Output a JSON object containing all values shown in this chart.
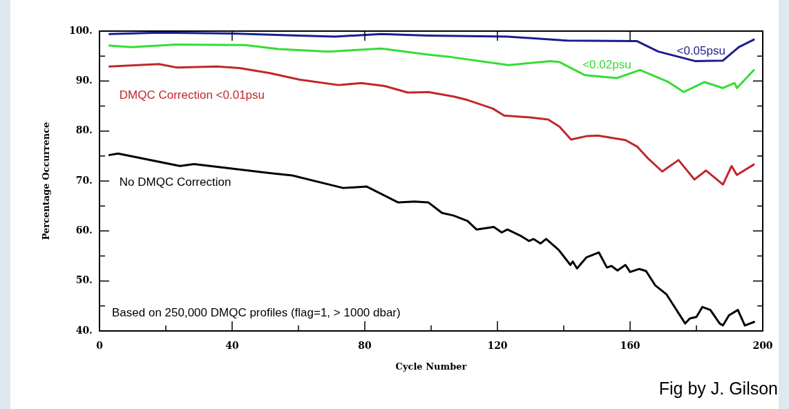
{
  "chart_data": {
    "type": "line",
    "xlabel": "Cycle Number",
    "ylabel": "Percentage Occurrence",
    "xlim": [
      0,
      200
    ],
    "ylim": [
      40,
      100
    ],
    "xticks": [
      0,
      {
        "value": 20,
        "label": null
      },
      40,
      {
        "value": 60,
        "label": null
      },
      80,
      {
        "value": 100,
        "label": null
      },
      120,
      {
        "value": 140,
        "label": null
      },
      160,
      {
        "value": 180,
        "label": null
      },
      200
    ],
    "yticks": [
      {
        "value": 40,
        "label": "40."
      },
      {
        "value": 45,
        "label": null
      },
      {
        "value": 50,
        "label": "50."
      },
      {
        "value": 55,
        "label": null
      },
      {
        "value": 60,
        "label": "60."
      },
      {
        "value": 65,
        "label": null
      },
      {
        "value": 70,
        "label": "70."
      },
      {
        "value": 75,
        "label": null
      },
      {
        "value": 80,
        "label": "80."
      },
      {
        "value": 85,
        "label": null
      },
      {
        "value": 90,
        "label": "90."
      },
      {
        "value": 95,
        "label": null
      },
      {
        "value": 100,
        "label": "100."
      }
    ],
    "grid": false,
    "legend": false,
    "marker": "none",
    "line_style": "solid",
    "series": [
      {
        "name": "<0.05psu",
        "color": "#1c1c8e",
        "x": [
          3,
          18,
          40,
          60,
          71,
          85,
          99,
          123,
          141,
          162,
          168.5,
          179.6,
          188,
          192.8,
          197.3
        ],
        "values": [
          99.4,
          99.7,
          99.5,
          99.1,
          98.9,
          99.4,
          99.1,
          98.9,
          98.1,
          98,
          95.9,
          94,
          94.1,
          96.8,
          98.3
        ]
      },
      {
        "name": "<0.02psu",
        "color": "#33dd33",
        "x": [
          3,
          9.6,
          23,
          44,
          54,
          69,
          85,
          99,
          106,
          123.4,
          135.9,
          138.7,
          146.3,
          156,
          163,
          171.3,
          176.2,
          182.4,
          188,
          191.5,
          192.2,
          197.3
        ],
        "values": [
          97.1,
          96.8,
          97.3,
          97.2,
          96.4,
          95.9,
          96.5,
          95.3,
          94.8,
          93.2,
          94,
          93.8,
          91.2,
          90.6,
          92.2,
          89.9,
          87.8,
          89.8,
          88.6,
          89.6,
          88.6,
          92.2
        ]
      },
      {
        "name": "DMQC Correction <0.01psu",
        "color": "#c0262a",
        "x": [
          3,
          17.9,
          23.5,
          35.3,
          42.2,
          51.3,
          60.3,
          72.1,
          79,
          86,
          93,
          99.2,
          106.8,
          111,
          118.6,
          122,
          130.4,
          135.3,
          138.7,
          142.2,
          147,
          150.3,
          158.6,
          162.1,
          165.6,
          169.7,
          174.6,
          179.4,
          182.9,
          188,
          190.6,
          192.2,
          197.3
        ],
        "values": [
          92.9,
          93.4,
          92.7,
          92.9,
          92.6,
          91.6,
          90.3,
          89.2,
          89.6,
          89,
          87.7,
          87.8,
          86.9,
          86.2,
          84.5,
          83.1,
          82.7,
          82.3,
          80.9,
          78.3,
          79,
          79.1,
          78.2,
          76.9,
          74.4,
          71.9,
          74.2,
          70.3,
          72.1,
          69.3,
          73,
          71.2,
          73.3
        ]
      },
      {
        "name": "No DMQC Correction",
        "color": "#000000",
        "x": [
          3,
          5.6,
          24.3,
          28.5,
          51.3,
          58.2,
          73.5,
          80.5,
          90.1,
          95,
          99.2,
          103.3,
          106.7,
          111,
          113.7,
          118.9,
          121.3,
          123,
          126.8,
          129.5,
          130.9,
          133,
          134.7,
          138.5,
          142,
          142.7,
          144,
          146.8,
          150.6,
          153,
          154.4,
          156.2,
          158.6,
          160,
          162.7,
          164.8,
          167.6,
          171,
          176.6,
          178,
          180,
          181.8,
          184.2,
          187,
          188,
          189.8,
          192.5,
          194.6,
          197.4
        ],
        "values": [
          75.2,
          75.5,
          73,
          73.4,
          71.6,
          71.1,
          68.6,
          68.9,
          65.7,
          65.9,
          65.7,
          63.6,
          63.1,
          62,
          60.3,
          60.8,
          59.7,
          60.3,
          59.1,
          58,
          58.4,
          57.5,
          58.4,
          56.2,
          53.2,
          53.9,
          52.5,
          54.7,
          55.7,
          52.7,
          53,
          52.1,
          53.2,
          51.8,
          52.4,
          52,
          49.1,
          47.3,
          41.5,
          42.5,
          42.8,
          44.8,
          44.2,
          41.5,
          41.1,
          43.1,
          44.2,
          41.1,
          41.8
        ]
      }
    ],
    "annotations": [
      "Based on 250,000 DMQC profiles (flag=1, > 1000 dbar)",
      "Fig by J. Gilson"
    ]
  }
}
